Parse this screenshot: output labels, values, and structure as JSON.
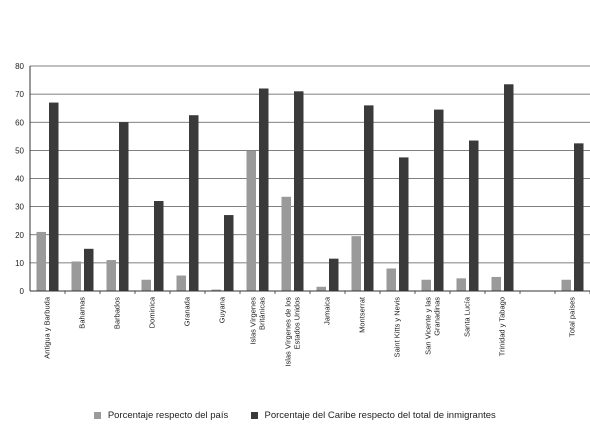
{
  "chart_data": {
    "type": "bar",
    "categories": [
      [
        "Antigua y Barbuda"
      ],
      [
        "Bahamas"
      ],
      [
        "Barbados"
      ],
      [
        "Dominica"
      ],
      [
        "Granada"
      ],
      [
        "Guyana"
      ],
      [
        "Islas Vírgenes",
        "Británicas"
      ],
      [
        "Islas Vírgenes de los",
        "Estados Unidos"
      ],
      [
        "Jamaica"
      ],
      [
        "Montserrat"
      ],
      [
        "Saint Kitts y Nevis"
      ],
      [
        "San Vicente y las",
        "Granadinas"
      ],
      [
        "Santa Lucía"
      ],
      [
        "Trinidad y Tabago"
      ],
      [
        ""
      ],
      [
        "Total países"
      ]
    ],
    "series": [
      {
        "name": "Porcentaje respecto del país",
        "color": "#9a9a9a",
        "values": [
          21,
          10.5,
          11,
          4,
          5.5,
          0.5,
          50,
          33.5,
          1.5,
          19.5,
          8,
          4,
          4.5,
          5,
          null,
          4
        ]
      },
      {
        "name": "Porcentaje del Caribe respecto del total de inmigrantes",
        "color": "#3a3a3a",
        "values": [
          67,
          15,
          60,
          32,
          62.5,
          27,
          72,
          71,
          11.5,
          66,
          47.5,
          64.5,
          53.5,
          73.5,
          null,
          52.5
        ]
      }
    ],
    "ylim": [
      0,
      80
    ],
    "yticks": [
      0,
      10,
      20,
      30,
      40,
      50,
      60,
      70,
      80
    ],
    "grid": true,
    "legend_position": "bottom"
  }
}
